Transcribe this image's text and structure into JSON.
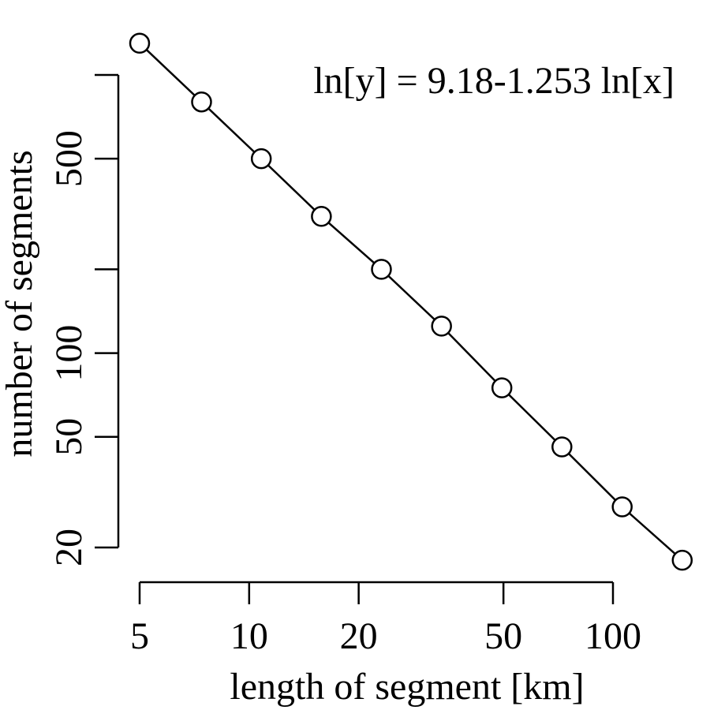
{
  "chart_data": {
    "type": "line",
    "title": "",
    "xlabel": "length of segment [km]",
    "ylabel": "number of segments",
    "x_scale": "log",
    "y_scale": "log",
    "xlim": [
      5,
      150
    ],
    "ylim": [
      20,
      1000
    ],
    "x_ticks": [
      {
        "value": 5,
        "label": "5"
      },
      {
        "value": 10,
        "label": "10"
      },
      {
        "value": 20,
        "label": "20"
      },
      {
        "value": 50,
        "label": "50"
      },
      {
        "value": 100,
        "label": "100"
      }
    ],
    "y_ticks": [
      {
        "value": 20,
        "label": "20"
      },
      {
        "value": 50,
        "label": "50"
      },
      {
        "value": 100,
        "label": "100"
      },
      {
        "value": 200,
        "label": ""
      },
      {
        "value": 500,
        "label": "500"
      },
      {
        "value": 1000,
        "label": ""
      }
    ],
    "annotation": "ln[y] = 9.18-1.253 ln[x]",
    "grid": false,
    "series": [
      {
        "x": [
          5,
          7.4,
          10.8,
          15.8,
          23.1,
          33.8,
          49.5,
          72.4,
          106,
          155
        ],
        "y": [
          1300,
          800,
          500,
          310,
          200,
          125,
          75,
          46,
          28,
          18
        ],
        "marker": "open-circle"
      }
    ]
  }
}
